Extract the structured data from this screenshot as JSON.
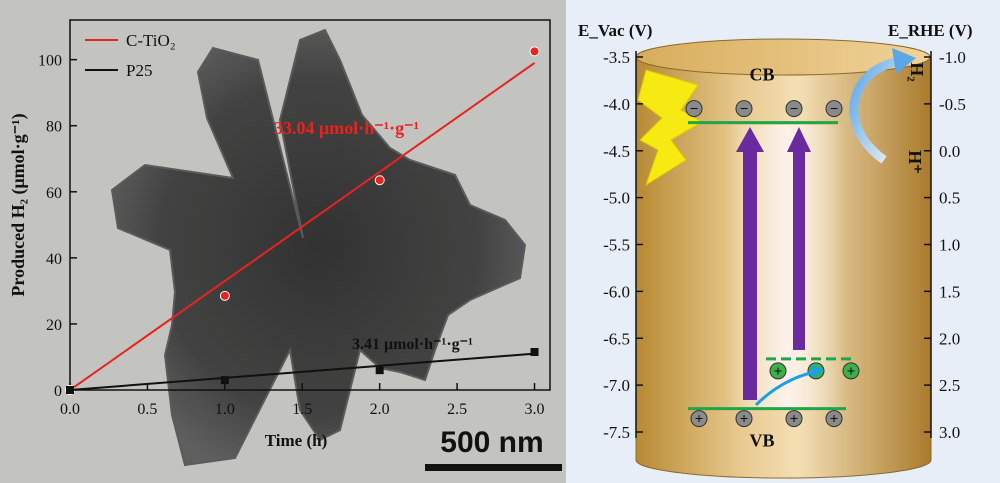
{
  "chart_data": [
    {
      "type": "line",
      "xlabel": "Time (h)",
      "ylabel": "Produced H₂ (μmol·g⁻¹)",
      "xlim": [
        0,
        3.1
      ],
      "ylim": [
        0,
        112
      ],
      "xticks": [
        0,
        0.5,
        1,
        1.5,
        2,
        2.5,
        3
      ],
      "yticks": [
        0,
        20,
        40,
        60,
        80,
        100
      ],
      "xtick_labels": [
        "0.0",
        "0.5",
        "1.0",
        "1.5",
        "2.0",
        "2.5",
        "3.0"
      ],
      "ytick_labels": [
        "0",
        "20",
        "40",
        "60",
        "80",
        "100"
      ],
      "legend_position": "top-left",
      "series": [
        {
          "name": "C-TiO₂",
          "color": "#e8231f",
          "marker": "circle",
          "points": [
            [
              0,
              0
            ],
            [
              1,
              28.5
            ],
            [
              2,
              63.5
            ],
            [
              3,
              102.5
            ]
          ],
          "fit": [
            [
              0,
              0
            ],
            [
              3,
              99
            ]
          ],
          "annotation": "33.04 μmol·h⁻¹·g⁻¹"
        },
        {
          "name": "P25",
          "color": "#111111",
          "marker": "square",
          "points": [
            [
              0,
              0
            ],
            [
              1,
              3
            ],
            [
              2,
              6
            ],
            [
              3,
              11.5
            ]
          ],
          "fit": [
            [
              0,
              0
            ],
            [
              3,
              11
            ]
          ],
          "annotation": "3.41 μmol·h⁻¹·g⁻¹"
        }
      ],
      "scale_bar_label": "500 nm"
    },
    {
      "type": "band-diagram",
      "left_axis_label": "E_Vac (V)",
      "right_axis_label": "E_RHE (V)",
      "left_ticks": [
        "-3.5",
        "-4.0",
        "-4.5",
        "-5.0",
        "-5.5",
        "-6.0",
        "-6.5",
        "-7.0",
        "-7.5"
      ],
      "right_ticks": [
        "-1.0",
        "-0.5",
        "0.0",
        "0.5",
        "1.0",
        "1.5",
        "2.0",
        "2.5",
        "3.0"
      ],
      "left_range": [
        -3.5,
        -7.5
      ],
      "levels": {
        "cb": -4.2,
        "vb": -7.25,
        "defect": -6.72
      },
      "band_labels": {
        "cb": "CB",
        "vb": "VB"
      },
      "species": {
        "h2": "H₂",
        "hplus": "H⁺"
      },
      "electron_sign": "−",
      "hole_sign": "+"
    }
  ]
}
